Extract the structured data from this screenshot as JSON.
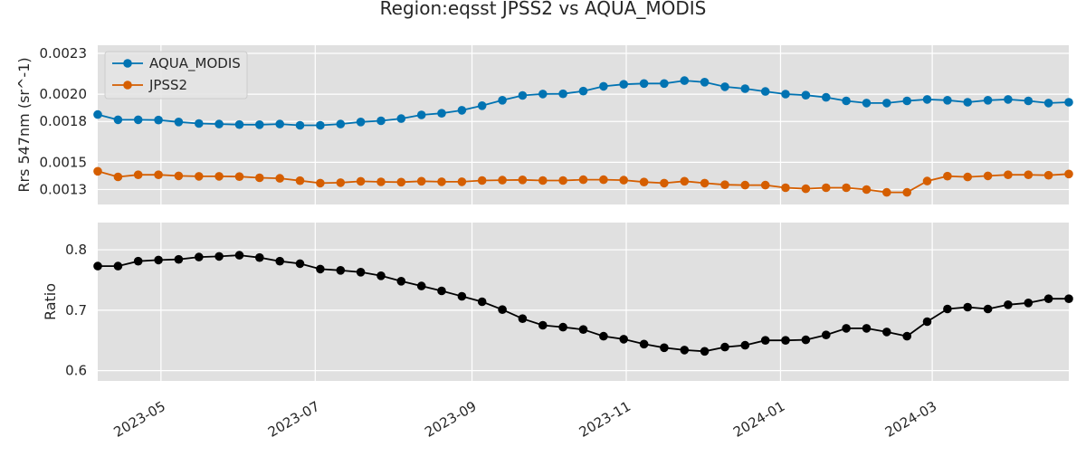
{
  "chart_data": {
    "title": "Region:eqsst JPSS2 vs AQUA_MODIS",
    "x_ticks": [
      "2023-05",
      "2023-07",
      "2023-09",
      "2023-11",
      "2024-01",
      "2024-03"
    ],
    "x": [
      "2023-04-06",
      "2023-04-14",
      "2023-04-22",
      "2023-04-30",
      "2023-05-08",
      "2023-05-16",
      "2023-05-24",
      "2023-06-01",
      "2023-06-09",
      "2023-06-17",
      "2023-06-25",
      "2023-07-03",
      "2023-07-11",
      "2023-07-19",
      "2023-07-27",
      "2023-08-04",
      "2023-08-12",
      "2023-08-20",
      "2023-08-28",
      "2023-09-05",
      "2023-09-13",
      "2023-09-21",
      "2023-09-29",
      "2023-10-07",
      "2023-10-15",
      "2023-10-23",
      "2023-10-31",
      "2023-11-08",
      "2023-11-16",
      "2023-11-24",
      "2023-12-02",
      "2023-12-10",
      "2023-12-18",
      "2023-12-26",
      "2024-01-03",
      "2024-01-11",
      "2024-01-19",
      "2024-01-27",
      "2024-02-04",
      "2024-02-12",
      "2024-02-20",
      "2024-02-28",
      "2024-03-07",
      "2024-03-15",
      "2024-03-23",
      "2024-03-31",
      "2024-04-08",
      "2024-04-16",
      "2024-04-24"
    ],
    "panels": [
      {
        "type": "line",
        "ylabel": "Rrs 547nm (sr^-1)",
        "ylim": [
          0.00119,
          0.00236
        ],
        "yticks": [
          0.0013,
          0.0015,
          0.0018,
          0.002,
          0.0023
        ],
        "ytick_labels": [
          "0.0013",
          "0.0015",
          "0.0018",
          "0.0020",
          "0.0023"
        ],
        "legend": "upper left",
        "series": [
          {
            "name": "AQUA_MODIS",
            "color": "#0173b2",
            "values": [
              0.001851,
              0.001812,
              0.001812,
              0.00181,
              0.001796,
              0.001785,
              0.001781,
              0.001777,
              0.001776,
              0.001781,
              0.001772,
              0.001772,
              0.001781,
              0.001796,
              0.001805,
              0.001821,
              0.001848,
              0.00186,
              0.001882,
              0.001916,
              0.001956,
              0.001991,
              0.002002,
              0.002003,
              0.002023,
              0.002058,
              0.002073,
              0.002079,
              0.002079,
              0.0021,
              0.002089,
              0.002055,
              0.002041,
              0.00202,
              0.002001,
              0.001993,
              0.001977,
              0.001951,
              0.001935,
              0.001935,
              0.001951,
              0.001962,
              0.001956,
              0.001941,
              0.001956,
              0.001962,
              0.001951,
              0.001935,
              0.001941
            ]
          },
          {
            "name": "JPSS2",
            "color": "#d55e00",
            "values": [
              0.001434,
              0.001393,
              0.001408,
              0.001408,
              0.0014,
              0.001397,
              0.001397,
              0.001395,
              0.001386,
              0.001382,
              0.001365,
              0.001347,
              0.00135,
              0.00136,
              0.001356,
              0.001354,
              0.001361,
              0.001357,
              0.001357,
              0.001366,
              0.001369,
              0.001371,
              0.001366,
              0.001366,
              0.001372,
              0.001372,
              0.001369,
              0.001355,
              0.001347,
              0.001361,
              0.001347,
              0.001335,
              0.001332,
              0.001332,
              0.001313,
              0.001306,
              0.001313,
              0.001313,
              0.0013,
              0.001279,
              0.001279,
              0.001362,
              0.001398,
              0.001392,
              0.0014,
              0.001408,
              0.001408,
              0.001405,
              0.001414
            ]
          }
        ]
      },
      {
        "type": "line",
        "ylabel": "Ratio",
        "ylim": [
          0.583,
          0.845
        ],
        "yticks": [
          0.6,
          0.7,
          0.8
        ],
        "ytick_labels": [
          "0.6",
          "0.7",
          "0.8"
        ],
        "series": [
          {
            "color": "#000000",
            "values": [
              0.773,
              0.773,
              0.781,
              0.783,
              0.784,
              0.788,
              0.789,
              0.791,
              0.787,
              0.781,
              0.777,
              0.768,
              0.766,
              0.763,
              0.757,
              0.748,
              0.74,
              0.732,
              0.723,
              0.714,
              0.701,
              0.686,
              0.675,
              0.672,
              0.668,
              0.657,
              0.652,
              0.644,
              0.638,
              0.634,
              0.632,
              0.639,
              0.642,
              0.65,
              0.65,
              0.651,
              0.659,
              0.67,
              0.67,
              0.664,
              0.657,
              0.681,
              0.702,
              0.705,
              0.702,
              0.709,
              0.712,
              0.719,
              0.719
            ]
          }
        ]
      }
    ]
  }
}
